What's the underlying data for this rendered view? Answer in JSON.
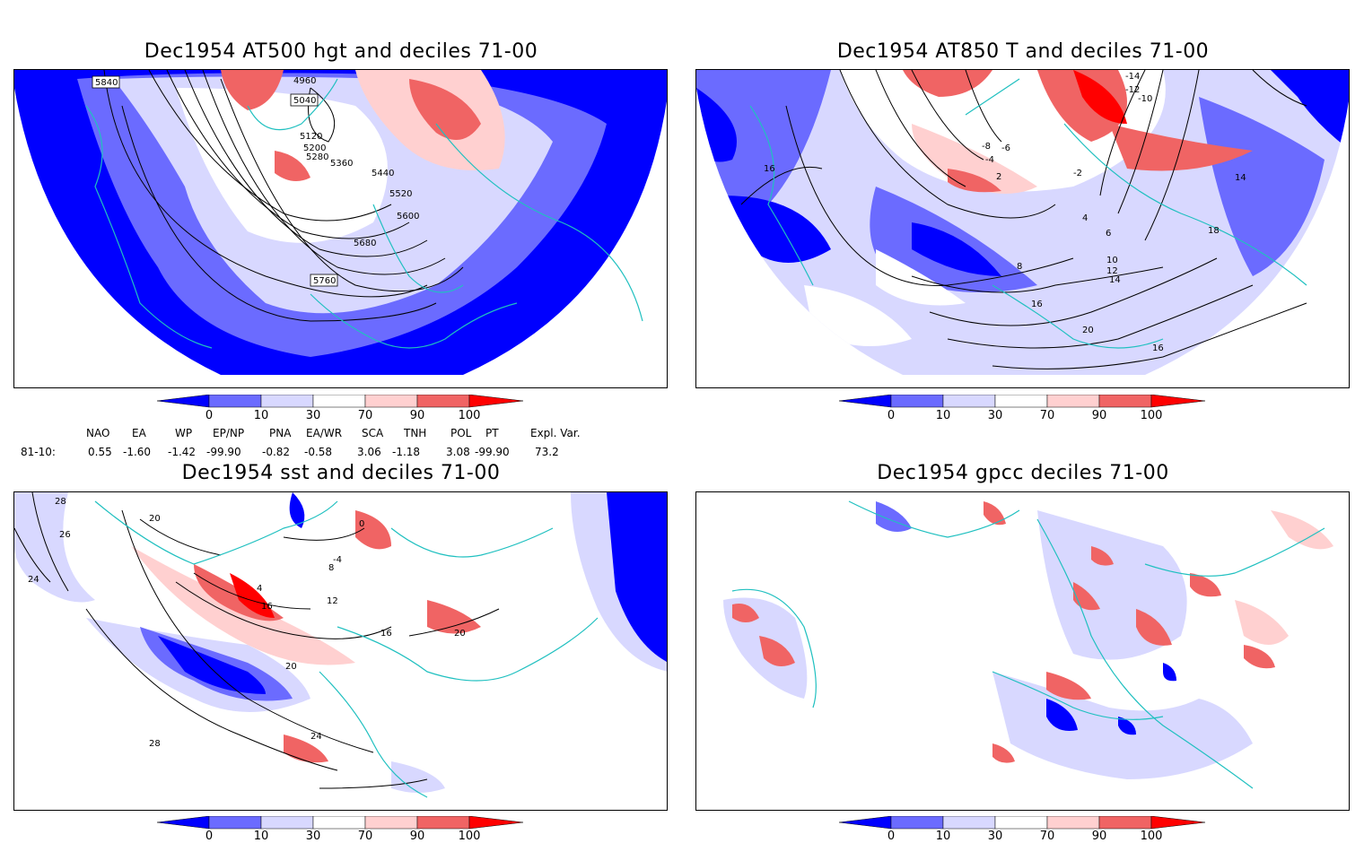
{
  "panels": [
    {
      "title": "Dec1954 AT500 hgt and deciles 71-00",
      "contour_labels": [
        "5840",
        "4960",
        "5040",
        "5120",
        "5200",
        "5280",
        "5360",
        "5440",
        "5520",
        "5600",
        "5680",
        "5760"
      ]
    },
    {
      "title": "Dec1954 AT850 T and deciles 71-00",
      "contour_labels": [
        "-14",
        "-12",
        "-10",
        "-8",
        "-6",
        "-4",
        "-2",
        "2",
        "4",
        "6",
        "8",
        "10",
        "12",
        "14",
        "16",
        "18",
        "20",
        "16",
        "14",
        "16"
      ]
    },
    {
      "title": "Dec1954 sst and deciles 71-00",
      "contour_labels": [
        "28",
        "26",
        "24",
        "20",
        "16",
        "12",
        "8",
        "4",
        "0",
        "-4",
        "16",
        "20",
        "24",
        "28",
        "20"
      ]
    },
    {
      "title": "Dec1954 gpcc deciles 71-00",
      "contour_labels": []
    }
  ],
  "colorbar": {
    "ticks": [
      "0",
      "10",
      "30",
      "70",
      "90",
      "100"
    ],
    "colors": [
      "#0000ff",
      "#6b6bff",
      "#d8d8ff",
      "#ffffff",
      "#ffd0d0",
      "#f06464",
      "#ff0000"
    ]
  },
  "indices": {
    "header": [
      "NAO",
      "EA",
      "WP",
      "EP/NP",
      "PNA",
      "EA/WR",
      "SCA",
      "TNH",
      "POL",
      "PT",
      "Expl. Var."
    ],
    "row_label": "81-10:",
    "values": [
      "0.55",
      "-1.60",
      "-1.42",
      "-99.90",
      "-0.82",
      "-0.58",
      "3.06",
      "-1.18",
      "3.08",
      "-99.90",
      "73.2"
    ]
  }
}
